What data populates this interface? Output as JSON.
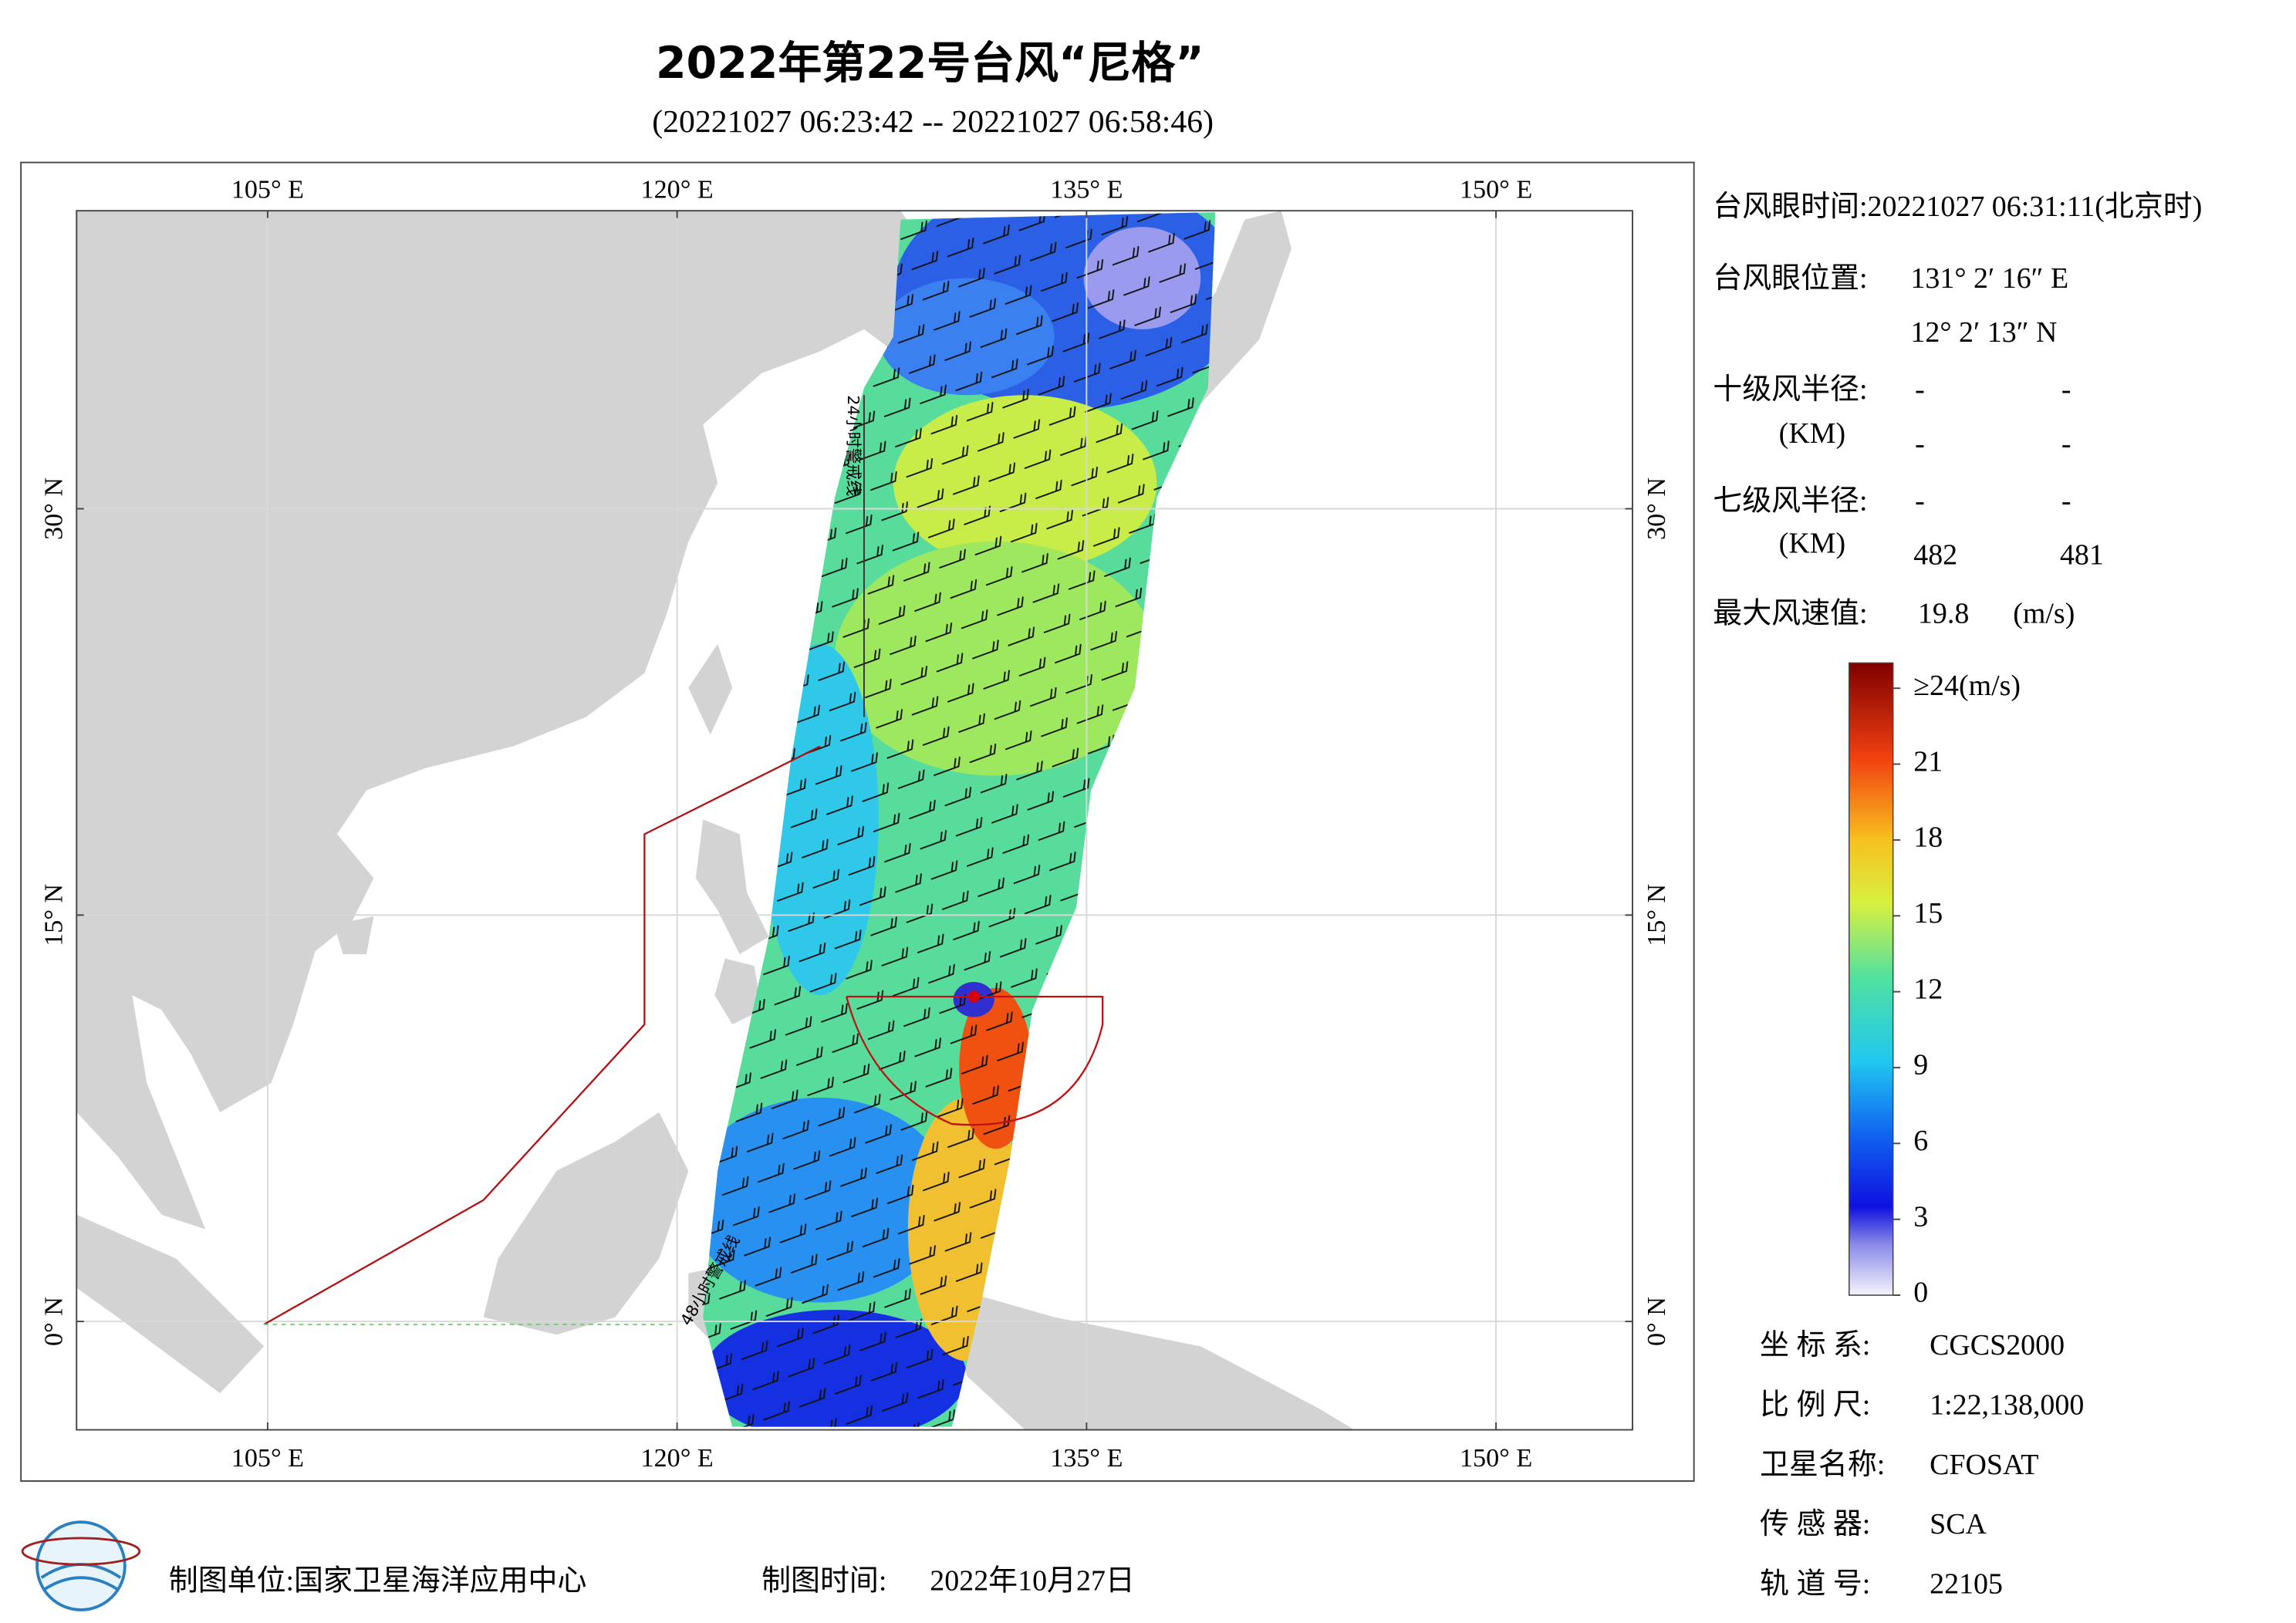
{
  "title": "2022年第22号台风“尼格”",
  "subtitle": "(20221027 06:23:42 -- 20221027 06:58:46)",
  "map": {
    "xlim": [
      98,
      155
    ],
    "ylim": [
      -4,
      41
    ],
    "xticks": [
      {
        "value": 105,
        "label": "105° E"
      },
      {
        "value": 120,
        "label": "120° E"
      },
      {
        "value": 135,
        "label": "135° E"
      },
      {
        "value": 150,
        "label": "150° E"
      }
    ],
    "yticks": [
      {
        "value": 30,
        "label": "30° N"
      },
      {
        "value": 15,
        "label": "15° N"
      },
      {
        "value": 0,
        "label": "0° N"
      }
    ],
    "grid": true,
    "annotations": [
      "24小时警戒线",
      "48小时警戒线"
    ]
  },
  "info": {
    "eye_time": "台风眼时间:20221027 06:31:11(北京时)",
    "eye_position_label": "台风眼位置:",
    "eye_lon": "131° 2′ 16″ E",
    "eye_lat": "12° 2′ 13″ N",
    "r10_label": "十级风半径:",
    "r10_unit": "(KM)",
    "r10_values": [
      "-",
      "-",
      "-",
      "-"
    ],
    "r7_label": "七级风半径:",
    "r7_unit": "(KM)",
    "r7_values": [
      "-",
      "-",
      "482",
      "481"
    ],
    "max_wind_label": "最大风速值:",
    "max_wind_value": "19.8",
    "max_wind_unit": "(m/s)"
  },
  "colorbar": {
    "lim": [
      0,
      25
    ],
    "ticks": [
      {
        "value": 24,
        "label": "≥24(m/s)"
      },
      21,
      18,
      15,
      12,
      9,
      6,
      3,
      0
    ]
  },
  "meta": [
    {
      "label": "坐 标 系:",
      "value": "CGCS2000"
    },
    {
      "label": "比 例 尺:",
      "value": "1:22,138,000"
    },
    {
      "label": "卫星名称:",
      "value": "CFOSAT"
    },
    {
      "label": "传 感 器:",
      "value": "SCA"
    },
    {
      "label": "轨 道 号:",
      "value": "22105"
    }
  ],
  "footer": {
    "unit": "制图单位:国家卫星海洋应用中心",
    "time_label": "制图时间:",
    "time": "2022年10月27日"
  }
}
